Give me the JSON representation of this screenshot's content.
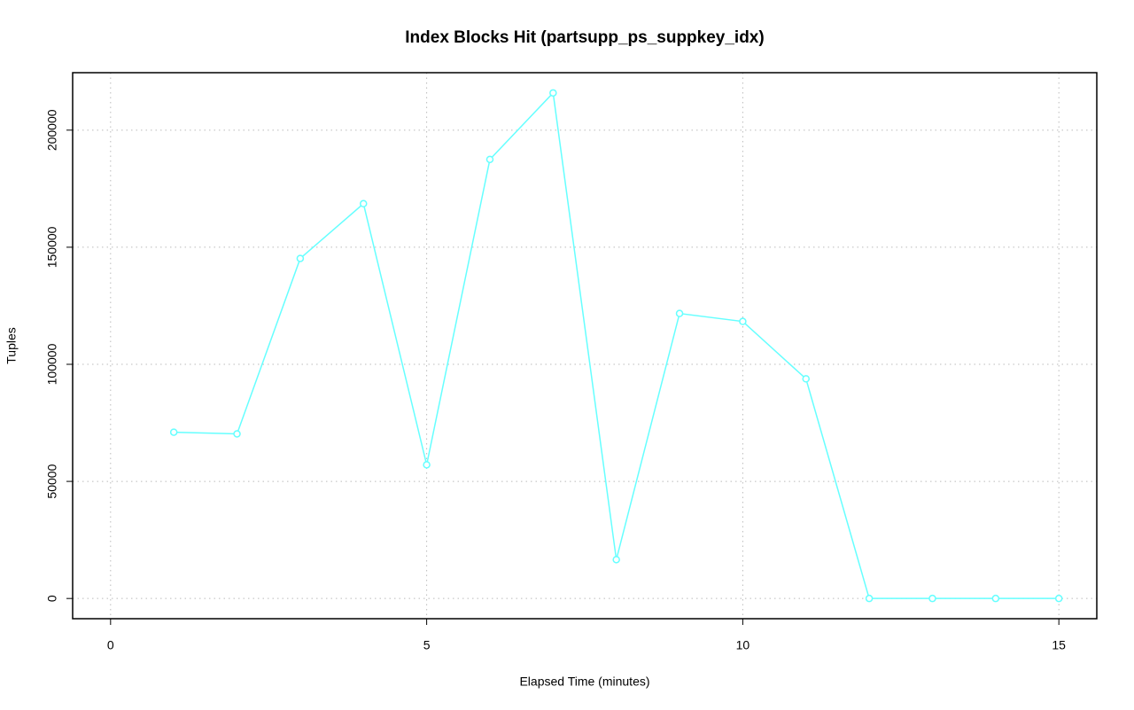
{
  "chart_data": {
    "type": "line",
    "title": "Index Blocks Hit (partsupp_ps_suppkey_idx)",
    "x_label": "Elapsed Time (minutes)",
    "y_label": "Tuples",
    "x": [
      1,
      2,
      3,
      4,
      5,
      6,
      7,
      8,
      9,
      10,
      11,
      12,
      13,
      14,
      15
    ],
    "series": [
      {
        "name": "partsupp_ps_suppkey_idx",
        "color": "#66ffff",
        "values": [
          71000,
          70300,
          145200,
          168600,
          57100,
          187500,
          215900,
          16600,
          121700,
          118300,
          93800,
          0,
          0,
          0,
          0
        ]
      }
    ],
    "xlim": [
      -0.6,
      15.6
    ],
    "xticks": [
      0,
      5,
      10,
      15
    ],
    "ylim": [
      -8636,
      224536
    ],
    "yticks": [
      0,
      50000,
      100000,
      150000,
      200000
    ],
    "grid": true
  }
}
